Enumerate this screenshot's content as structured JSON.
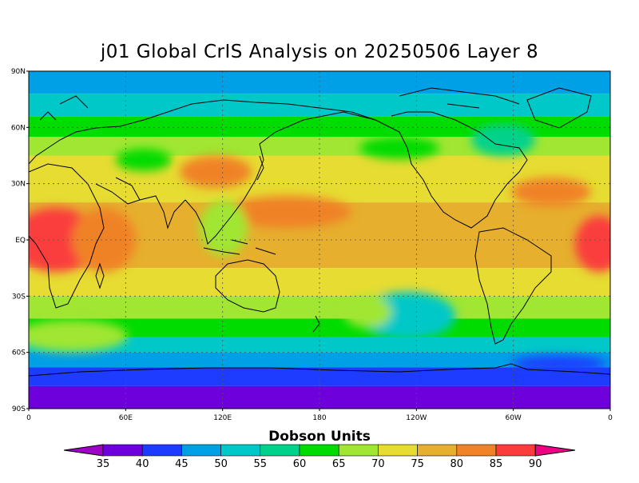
{
  "title": "j01 Global CrIS Analysis on 20250506 Layer 8",
  "lat_labels": [
    "90N",
    "60N",
    "30N",
    "EQ",
    "30S",
    "60S",
    "90S"
  ],
  "lon_labels": [
    "0",
    "60E",
    "120E",
    "180",
    "120W",
    "60W",
    "0"
  ],
  "colorbar": {
    "title": "Dobson Units",
    "levels": [
      "35",
      "40",
      "45",
      "50",
      "55",
      "60",
      "65",
      "70",
      "75",
      "80",
      "85",
      "90"
    ],
    "colors": [
      "#a000c8",
      "#6e00dc",
      "#1e3cff",
      "#00a0e6",
      "#00c8c8",
      "#00d28c",
      "#00dc00",
      "#a0e632",
      "#e6dc32",
      "#e6af2d",
      "#f08228",
      "#fa3c3c",
      "#f00082"
    ]
  },
  "field_bands": [
    {
      "lat_from": 90,
      "lat_to": 78,
      "color": "#00a0e6"
    },
    {
      "lat_from": 78,
      "lat_to": 66,
      "color": "#00c8c8"
    },
    {
      "lat_from": 66,
      "lat_to": 55,
      "color": "#00dc00"
    },
    {
      "lat_from": 55,
      "lat_to": 45,
      "color": "#a0e632"
    },
    {
      "lat_from": 45,
      "lat_to": 20,
      "color": "#e6dc32"
    },
    {
      "lat_from": 20,
      "lat_to": -15,
      "color": "#e6af2d"
    },
    {
      "lat_from": -15,
      "lat_to": -30,
      "color": "#e6dc32"
    },
    {
      "lat_from": -30,
      "lat_to": -42,
      "color": "#a0e632"
    },
    {
      "lat_from": -42,
      "lat_to": -52,
      "color": "#00dc00"
    },
    {
      "lat_from": -52,
      "lat_to": -60,
      "color": "#00c8c8"
    },
    {
      "lat_from": -60,
      "lat_to": -68,
      "color": "#00a0e6"
    },
    {
      "lat_from": -68,
      "lat_to": -78,
      "color": "#1e3cff"
    },
    {
      "lat_from": -78,
      "lat_to": -90,
      "color": "#6e00dc"
    }
  ]
}
